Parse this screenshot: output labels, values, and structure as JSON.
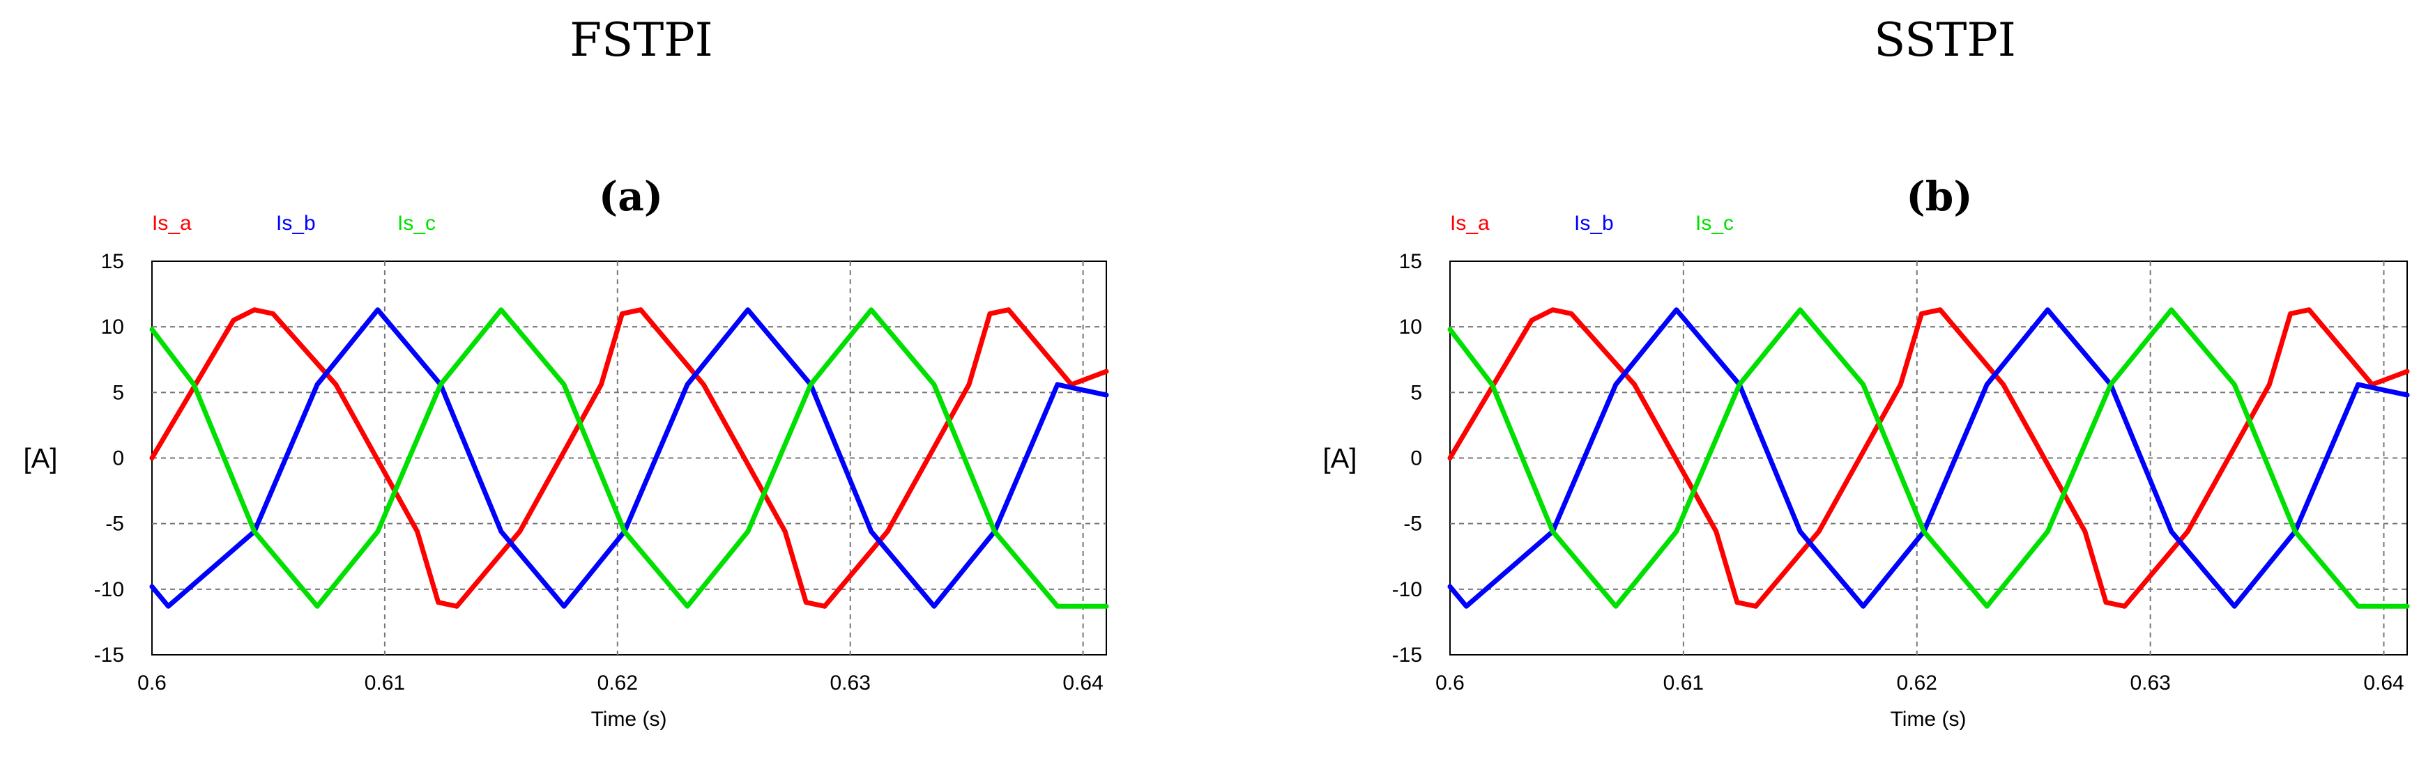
{
  "chart_data": [
    {
      "type": "line",
      "title": "FSTPI",
      "panel_label": "(a)",
      "xlabel": "Time (s)",
      "ylabel": "[A]",
      "xlim": [
        0.6,
        0.641
      ],
      "ylim": [
        -15,
        15
      ],
      "xticks": [
        0.6,
        0.61,
        0.62,
        0.63,
        0.64
      ],
      "xtick_labels": [
        "0.6",
        "0.61",
        "0.62",
        "0.63",
        "0.64"
      ],
      "yticks": [
        -15,
        -10,
        -5,
        0,
        5,
        10,
        15
      ],
      "ytick_labels": [
        "-15",
        "-10",
        "-5",
        "0",
        "5",
        "10",
        "15"
      ],
      "grid": true,
      "legend_position": "top-left",
      "series": [
        {
          "name": "Is_a",
          "color": "#ff0000",
          "x": [
            0.6,
            0.6035,
            0.6044,
            0.6052,
            0.6079,
            0.6114,
            0.6123,
            0.6131,
            0.6158,
            0.6193,
            0.6202,
            0.621,
            0.6237,
            0.6272,
            0.6281,
            0.6289,
            0.6316,
            0.6351,
            0.636,
            0.6368,
            0.6395,
            0.641
          ],
          "y": [
            0,
            10.5,
            11.3,
            11.0,
            5.6,
            -5.6,
            -11.0,
            -11.3,
            -5.6,
            5.6,
            11.0,
            11.3,
            5.6,
            -5.6,
            -11.0,
            -11.3,
            -5.6,
            5.6,
            11.0,
            11.3,
            5.6,
            6.6
          ]
        },
        {
          "name": "Is_b",
          "color": "#0000ff",
          "x": [
            0.6,
            0.6007,
            0.6044,
            0.6071,
            0.6097,
            0.6124,
            0.615,
            0.6177,
            0.6203,
            0.623,
            0.6256,
            0.6283,
            0.6309,
            0.6336,
            0.6362,
            0.6389,
            0.641
          ],
          "y": [
            -9.8,
            -11.3,
            -5.6,
            5.6,
            11.3,
            5.6,
            -5.6,
            -11.3,
            -5.6,
            5.6,
            11.3,
            5.6,
            -5.6,
            -11.3,
            -5.6,
            5.6,
            4.8
          ]
        },
        {
          "name": "Is_c",
          "color": "#00e000",
          "x": [
            0.6,
            0.6018,
            0.6044,
            0.6071,
            0.6097,
            0.6124,
            0.615,
            0.6177,
            0.6203,
            0.623,
            0.6256,
            0.6283,
            0.6309,
            0.6336,
            0.6362,
            0.6389,
            0.641
          ],
          "y": [
            9.8,
            5.6,
            -5.6,
            -11.3,
            -5.6,
            5.6,
            11.3,
            5.6,
            -5.6,
            -11.3,
            -5.6,
            5.6,
            11.3,
            5.6,
            -5.6,
            -11.3,
            -11.3
          ]
        }
      ]
    },
    {
      "type": "line",
      "title": "SSTPI",
      "panel_label": "(b)",
      "xlabel": "Time (s)",
      "ylabel": "[A]",
      "xlim": [
        0.6,
        0.641
      ],
      "ylim": [
        -15,
        15
      ],
      "xticks": [
        0.6,
        0.61,
        0.62,
        0.63,
        0.64
      ],
      "xtick_labels": [
        "0.6",
        "0.61",
        "0.62",
        "0.63",
        "0.64"
      ],
      "yticks": [
        -15,
        -10,
        -5,
        0,
        5,
        10,
        15
      ],
      "ytick_labels": [
        "-15",
        "-10",
        "-5",
        "0",
        "5",
        "10",
        "15"
      ],
      "grid": true,
      "legend_position": "top-left",
      "series": [
        {
          "name": "Is_a",
          "color": "#ff0000",
          "x": [
            0.6,
            0.6035,
            0.6044,
            0.6052,
            0.6079,
            0.6114,
            0.6123,
            0.6131,
            0.6158,
            0.6193,
            0.6202,
            0.621,
            0.6237,
            0.6272,
            0.6281,
            0.6289,
            0.6316,
            0.6351,
            0.636,
            0.6368,
            0.6395,
            0.641
          ],
          "y": [
            0,
            10.5,
            11.3,
            11.0,
            5.6,
            -5.6,
            -11.0,
            -11.3,
            -5.6,
            5.6,
            11.0,
            11.3,
            5.6,
            -5.6,
            -11.0,
            -11.3,
            -5.6,
            5.6,
            11.0,
            11.3,
            5.6,
            6.6
          ]
        },
        {
          "name": "Is_b",
          "color": "#0000ff",
          "x": [
            0.6,
            0.6007,
            0.6044,
            0.6071,
            0.6097,
            0.6124,
            0.615,
            0.6177,
            0.6203,
            0.623,
            0.6256,
            0.6283,
            0.6309,
            0.6336,
            0.6362,
            0.6389,
            0.641
          ],
          "y": [
            -9.8,
            -11.3,
            -5.6,
            5.6,
            11.3,
            5.6,
            -5.6,
            -11.3,
            -5.6,
            5.6,
            11.3,
            5.6,
            -5.6,
            -11.3,
            -5.6,
            5.6,
            4.8
          ]
        },
        {
          "name": "Is_c",
          "color": "#00e000",
          "x": [
            0.6,
            0.6018,
            0.6044,
            0.6071,
            0.6097,
            0.6124,
            0.615,
            0.6177,
            0.6203,
            0.623,
            0.6256,
            0.6283,
            0.6309,
            0.6336,
            0.6362,
            0.6389,
            0.641
          ],
          "y": [
            9.8,
            5.6,
            -5.6,
            -11.3,
            -5.6,
            5.6,
            11.3,
            5.6,
            -5.6,
            -11.3,
            -5.6,
            5.6,
            11.3,
            5.6,
            -5.6,
            -11.3,
            -11.3
          ]
        }
      ]
    }
  ]
}
